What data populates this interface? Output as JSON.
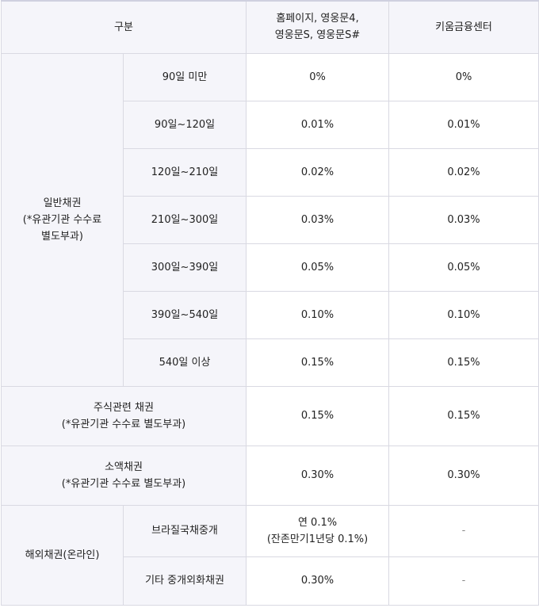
{
  "header": {
    "category": "구분",
    "col_online_line1": "홈페이지, 영웅문4,",
    "col_online_line2": "영웅문S, 영웅문S#",
    "col_center": "키움금융센터"
  },
  "general_bond": {
    "label_line1": "일반채권",
    "label_line2": "(*유관기관 수수료",
    "label_line3": "별도부과)",
    "rows": [
      {
        "period": "90일 미만",
        "online": "0%",
        "center": "0%"
      },
      {
        "period": "90일~120일",
        "online": "0.01%",
        "center": "0.01%"
      },
      {
        "period": "120일~210일",
        "online": "0.02%",
        "center": "0.02%"
      },
      {
        "period": "210일~300일",
        "online": "0.03%",
        "center": "0.03%"
      },
      {
        "period": "300일~390일",
        "online": "0.05%",
        "center": "0.05%"
      },
      {
        "period": "390일~540일",
        "online": "0.10%",
        "center": "0.10%"
      },
      {
        "period": "540일 이상",
        "online": "0.15%",
        "center": "0.15%"
      }
    ]
  },
  "stock_bond": {
    "label_line1": "주식관련 채권",
    "label_line2": "(*유관기관 수수료 별도부과)",
    "online": "0.15%",
    "center": "0.15%"
  },
  "small_bond": {
    "label_line1": "소액채권",
    "label_line2": "(*유관기관 수수료 별도부과)",
    "online": "0.30%",
    "center": "0.30%"
  },
  "overseas_bond": {
    "label": "해외채권(온라인)",
    "rows": [
      {
        "type": "브라질국채중개",
        "online_line1": "연 0.1%",
        "online_line2": "(잔존만기1년당 0.1%)",
        "center": "-"
      },
      {
        "type": "기타 중개외화채권",
        "online": "0.30%",
        "center": "-"
      }
    ]
  }
}
